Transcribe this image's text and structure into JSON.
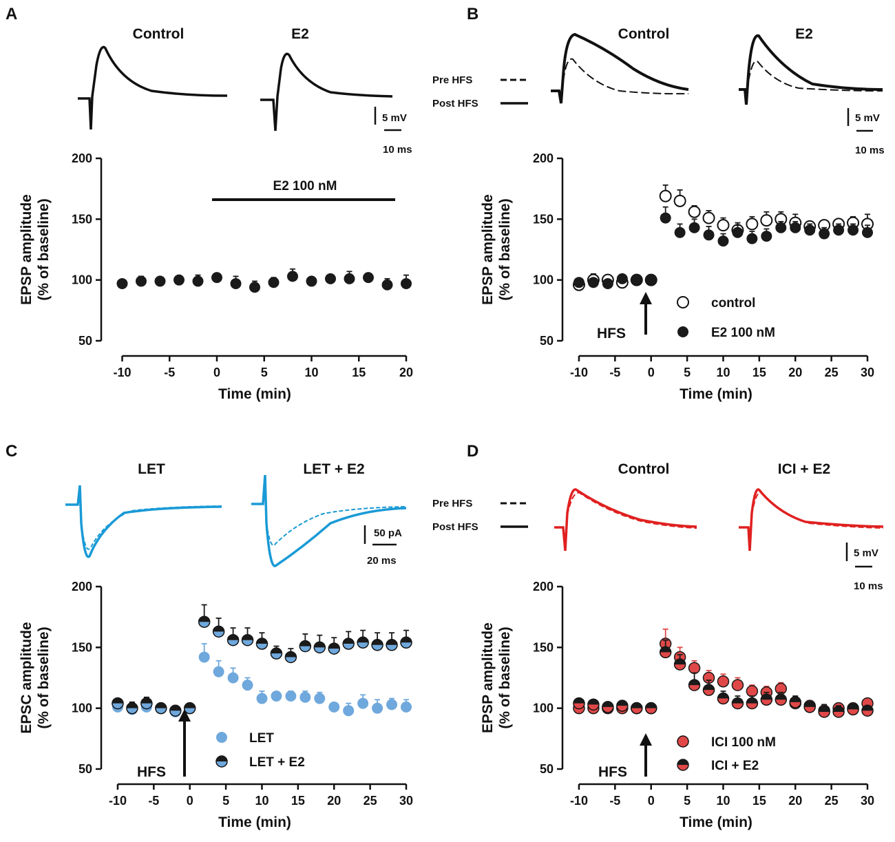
{
  "panels": {
    "A": {
      "letter": "A",
      "trace_labels": [
        "Control",
        "E2"
      ],
      "scale": {
        "v": "5 mV",
        "t": "10 ms"
      },
      "drug_bar_label": "E2 100 nM",
      "chart_data": {
        "type": "scatter",
        "ylabel_line1": "EPSP amplitude",
        "ylabel_line2": "(% of baseline)",
        "xlabel": "Time (min)",
        "xlim": [
          -12,
          20
        ],
        "ylim": [
          50,
          200
        ],
        "xticks": [
          -10,
          -5,
          0,
          5,
          10,
          15,
          20
        ],
        "yticks": [
          50,
          100,
          150,
          200
        ],
        "series": [
          {
            "name": "E2 100 nM",
            "style": "filled",
            "color": "#1a1a1a",
            "x": [
              -10,
              -8,
              -6,
              -4,
              -2,
              0,
              2,
              4,
              6,
              8,
              10,
              12,
              14,
              16,
              18,
              20
            ],
            "y": [
              97,
              99,
              99,
              100,
              99,
              102,
              97,
              94,
              98,
              103,
              99,
              101,
              101,
              102,
              96,
              97
            ],
            "err": [
              2,
              4,
              2,
              3,
              5,
              3,
              6,
              5,
              4,
              6,
              2,
              2,
              6,
              2,
              5,
              7
            ]
          }
        ]
      }
    },
    "B": {
      "letter": "B",
      "trace_labels": [
        "Control",
        "E2"
      ],
      "trace_legend": [
        "Pre HFS",
        "Post HFS"
      ],
      "scale": {
        "v": "5 mV",
        "t": "10 ms"
      },
      "arrow_label": "HFS",
      "chart_data": {
        "type": "scatter",
        "ylabel_line1": "EPSP amplitude",
        "ylabel_line2": "(% of baseline)",
        "xlabel": "Time (min)",
        "xlim": [
          -12,
          30
        ],
        "ylim": [
          50,
          200
        ],
        "xticks": [
          -10,
          -5,
          0,
          5,
          10,
          15,
          20,
          25,
          30
        ],
        "yticks": [
          50,
          100,
          150,
          200
        ],
        "series": [
          {
            "name": "control",
            "style": "open",
            "color": "#1a1a1a",
            "x": [
              -10,
              -8,
              -6,
              -4,
              -2,
              0,
              2,
              4,
              6,
              8,
              10,
              12,
              14,
              16,
              18,
              20,
              22,
              24,
              26,
              28,
              30
            ],
            "y": [
              96,
              100,
              100,
              98,
              100,
              100,
              169,
              165,
              156,
              151,
              145,
              141,
              146,
              149,
              150,
              147,
              144,
              145,
              146,
              147,
              146
            ],
            "err": [
              3,
              5,
              4,
              4,
              2,
              2,
              9,
              9,
              5,
              6,
              6,
              6,
              6,
              7,
              6,
              7,
              4,
              3,
              4,
              5,
              8
            ]
          },
          {
            "name": "E2 100 nM",
            "style": "filled",
            "color": "#1a1a1a",
            "x": [
              -10,
              -8,
              -6,
              -4,
              -2,
              0,
              2,
              4,
              6,
              8,
              10,
              12,
              14,
              16,
              18,
              20,
              22,
              24,
              26,
              28,
              30
            ],
            "y": [
              98,
              98,
              97,
              101,
              100,
              100,
              151,
              139,
              143,
              137,
              132,
              139,
              134,
              136,
              143,
              143,
              141,
              138,
              141,
              141,
              139
            ],
            "err": [
              2,
              3,
              3,
              2,
              2,
              2,
              9,
              7,
              7,
              7,
              6,
              6,
              6,
              6,
              5,
              5,
              5,
              5,
              5,
              5,
              6
            ]
          }
        ]
      }
    },
    "C": {
      "letter": "C",
      "trace_labels": [
        "LET",
        "LET + E2"
      ],
      "scale": {
        "v": "50 pA",
        "t": "20 ms"
      },
      "arrow_label": "HFS",
      "chart_data": {
        "type": "scatter",
        "ylabel_line1": "EPSC amplitude",
        "ylabel_line2": "(% of baseline)",
        "xlabel": "Time (min)",
        "xlim": [
          -12,
          30
        ],
        "ylim": [
          50,
          200
        ],
        "xticks": [
          -10,
          -5,
          0,
          5,
          10,
          15,
          20,
          25,
          30
        ],
        "yticks": [
          50,
          100,
          150,
          200
        ],
        "series": [
          {
            "name": "LET",
            "style": "filled",
            "color": "#6fa8dc",
            "x": [
              -10,
              -8,
              -6,
              -4,
              -2,
              0,
              2,
              4,
              6,
              8,
              10,
              12,
              14,
              16,
              18,
              20,
              22,
              24,
              26,
              28,
              30
            ],
            "y": [
              101,
              99,
              101,
              100,
              97,
              100,
              142,
              130,
              125,
              119,
              108,
              110,
              110,
              109,
              108,
              101,
              98,
              104,
              100,
              103,
              101
            ],
            "err": [
              3,
              3,
              4,
              3,
              3,
              2,
              11,
              9,
              8,
              6,
              6,
              3,
              4,
              5,
              5,
              3,
              6,
              7,
              7,
              5,
              6
            ]
          },
          {
            "name": "LET + E2",
            "style": "half",
            "color": "#1a1a1a",
            "color2": "#6fa8dc",
            "x": [
              -10,
              -8,
              -6,
              -4,
              -2,
              0,
              2,
              4,
              6,
              8,
              10,
              12,
              14,
              16,
              18,
              20,
              22,
              24,
              26,
              28,
              30
            ],
            "y": [
              104,
              100,
              104,
              100,
              98,
              100,
              171,
              163,
              156,
              156,
              153,
              145,
              142,
              151,
              150,
              149,
              153,
              154,
              152,
              152,
              154
            ],
            "err": [
              3,
              5,
              5,
              3,
              4,
              2,
              14,
              11,
              10,
              10,
              9,
              6,
              7,
              10,
              10,
              9,
              10,
              10,
              10,
              10,
              10
            ]
          }
        ]
      }
    },
    "D": {
      "letter": "D",
      "trace_labels": [
        "Control",
        "ICI + E2"
      ],
      "trace_legend": [
        "Pre HFS",
        "Post HFS"
      ],
      "scale": {
        "v": "5 mV",
        "t": "10 ms"
      },
      "arrow_label": "HFS",
      "chart_data": {
        "type": "scatter",
        "ylabel_line1": "EPSP amplitude",
        "ylabel_line2": "(% of baseline)",
        "xlabel": "Time (min)",
        "xlim": [
          -12,
          30
        ],
        "ylim": [
          50,
          200
        ],
        "xticks": [
          -10,
          -5,
          0,
          5,
          10,
          15,
          20,
          25,
          30
        ],
        "yticks": [
          50,
          100,
          150,
          200
        ],
        "series": [
          {
            "name": "ICI 100 nM",
            "style": "filled",
            "color": "#e04848",
            "stroke": "#1a1a1a",
            "x": [
              -10,
              -8,
              -6,
              -4,
              -2,
              0,
              2,
              4,
              6,
              8,
              10,
              12,
              14,
              16,
              18,
              20,
              22,
              24,
              26,
              28,
              30
            ],
            "y": [
              100,
              100,
              100,
              100,
              100,
              100,
              153,
              142,
              133,
              125,
              122,
              119,
              114,
              113,
              116,
              104,
              102,
              98,
              100,
              100,
              104
            ],
            "err": [
              2,
              2,
              2,
              2,
              2,
              2,
              12,
              8,
              6,
              6,
              6,
              6,
              5,
              5,
              5,
              4,
              4,
              4,
              4,
              4,
              4
            ]
          },
          {
            "name": "ICI + E2",
            "style": "half",
            "color": "#1a1a1a",
            "color2": "#e04848",
            "x": [
              -10,
              -8,
              -6,
              -4,
              -2,
              0,
              2,
              4,
              6,
              8,
              10,
              12,
              14,
              16,
              18,
              20,
              22,
              24,
              26,
              28,
              30
            ],
            "y": [
              104,
              103,
              101,
              102,
              100,
              100,
              146,
              136,
              119,
              115,
              108,
              104,
              104,
              107,
              107,
              105,
              101,
              97,
              97,
              99,
              98
            ],
            "err": [
              2,
              3,
              2,
              2,
              2,
              2,
              10,
              8,
              10,
              8,
              6,
              6,
              6,
              6,
              6,
              5,
              4,
              6,
              5,
              4,
              4
            ]
          }
        ]
      }
    }
  }
}
